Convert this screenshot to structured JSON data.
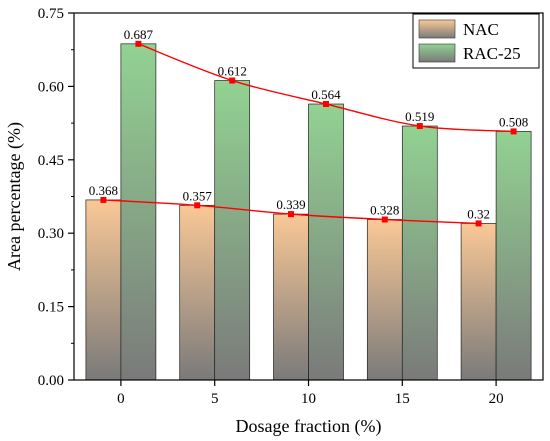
{
  "chart_data": {
    "type": "bar",
    "xlabel": "Dosage fraction (%)",
    "ylabel": "Area percentage (%)",
    "categories": [
      "0",
      "5",
      "10",
      "15",
      "20"
    ],
    "ylim": [
      0,
      0.75
    ],
    "yticks": [
      "0.00",
      "0.15",
      "0.30",
      "0.45",
      "0.60",
      "0.75"
    ],
    "series": [
      {
        "name": "NAC",
        "values": [
          0.368,
          0.357,
          0.339,
          0.328,
          0.32
        ],
        "labels": [
          "0.368",
          "0.357",
          "0.339",
          "0.328",
          "0.32"
        ],
        "color_top": "#fac896",
        "color_bottom": "#7a7a7a"
      },
      {
        "name": "RAC-25",
        "values": [
          0.687,
          0.612,
          0.564,
          0.519,
          0.508
        ],
        "labels": [
          "0.687",
          "0.612",
          "0.564",
          "0.519",
          "0.508"
        ],
        "color_top": "#92d292",
        "color_bottom": "#7a7a7a"
      }
    ],
    "trend_line_color": "#ff0000",
    "legend_position": "top-right",
    "grid": false
  }
}
